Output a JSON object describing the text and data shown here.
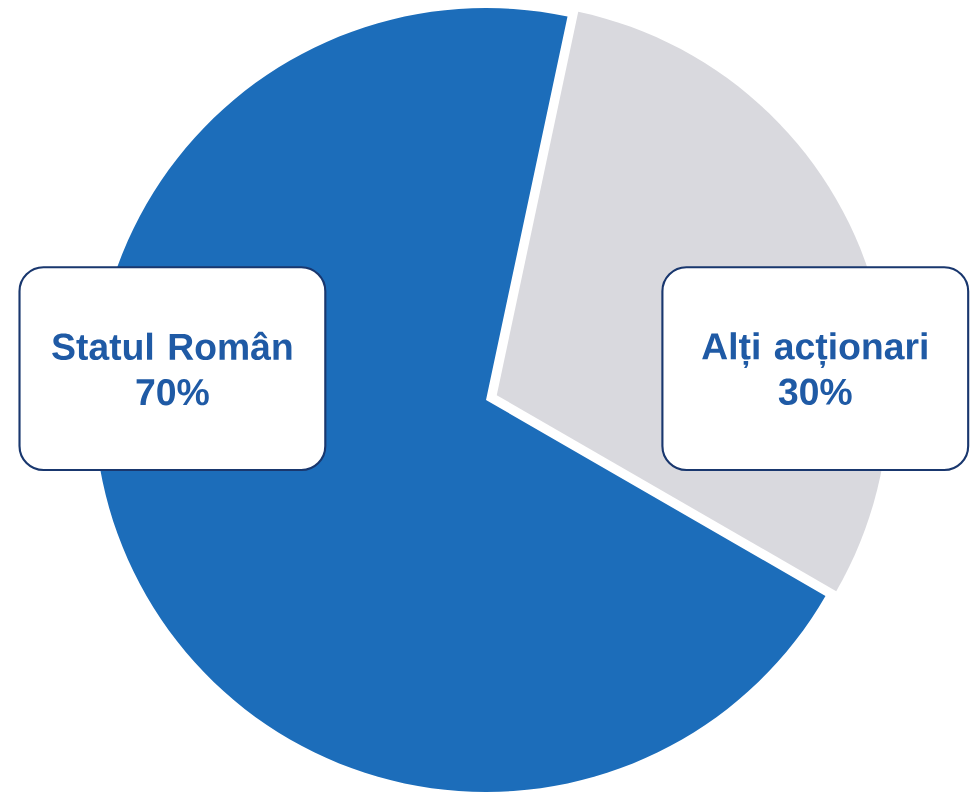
{
  "chart_data": {
    "type": "pie",
    "categories": [
      "Statul Român",
      "Alți acționari"
    ],
    "values": [
      70,
      30
    ],
    "colors": [
      "#1c6dba",
      "#d9d9de"
    ],
    "value_labels": [
      "70%",
      "30%"
    ]
  }
}
